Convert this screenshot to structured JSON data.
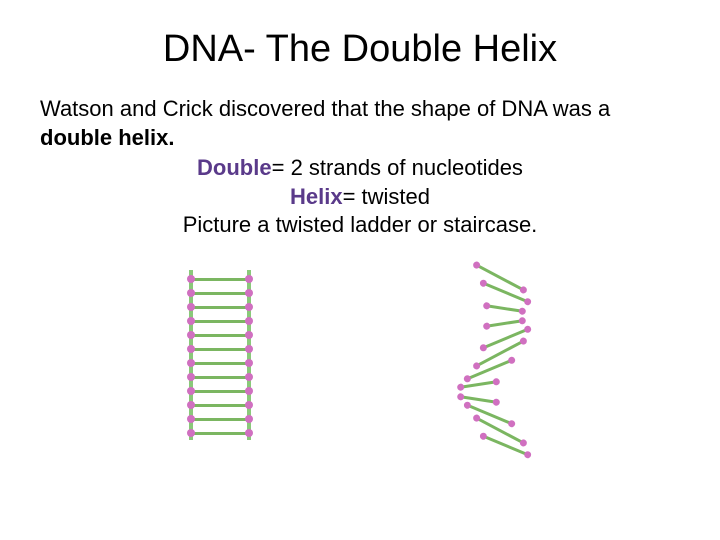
{
  "title": "DNA- The Double Helix",
  "intro_part1": "Watson and Crick discovered that the shape of DNA was a ",
  "intro_bold": "double helix.",
  "def1_term": "Double",
  "def1_text": "= 2 strands of nucleotides",
  "def2_term": "Helix",
  "def2_text": "=  twisted",
  "picture_text": "Picture a twisted ladder or staircase.",
  "colors": {
    "term": "#5a3a8a",
    "text": "#000000",
    "strand_green": "#7bb661",
    "strand_pink": "#d070c0",
    "background": "#ffffff"
  },
  "figure_left": {
    "type": "diagram",
    "description": "dna-straight-ladder",
    "rung_count": 12
  },
  "figure_right": {
    "type": "diagram",
    "description": "dna-twisted-helix",
    "rung_count": 12
  }
}
